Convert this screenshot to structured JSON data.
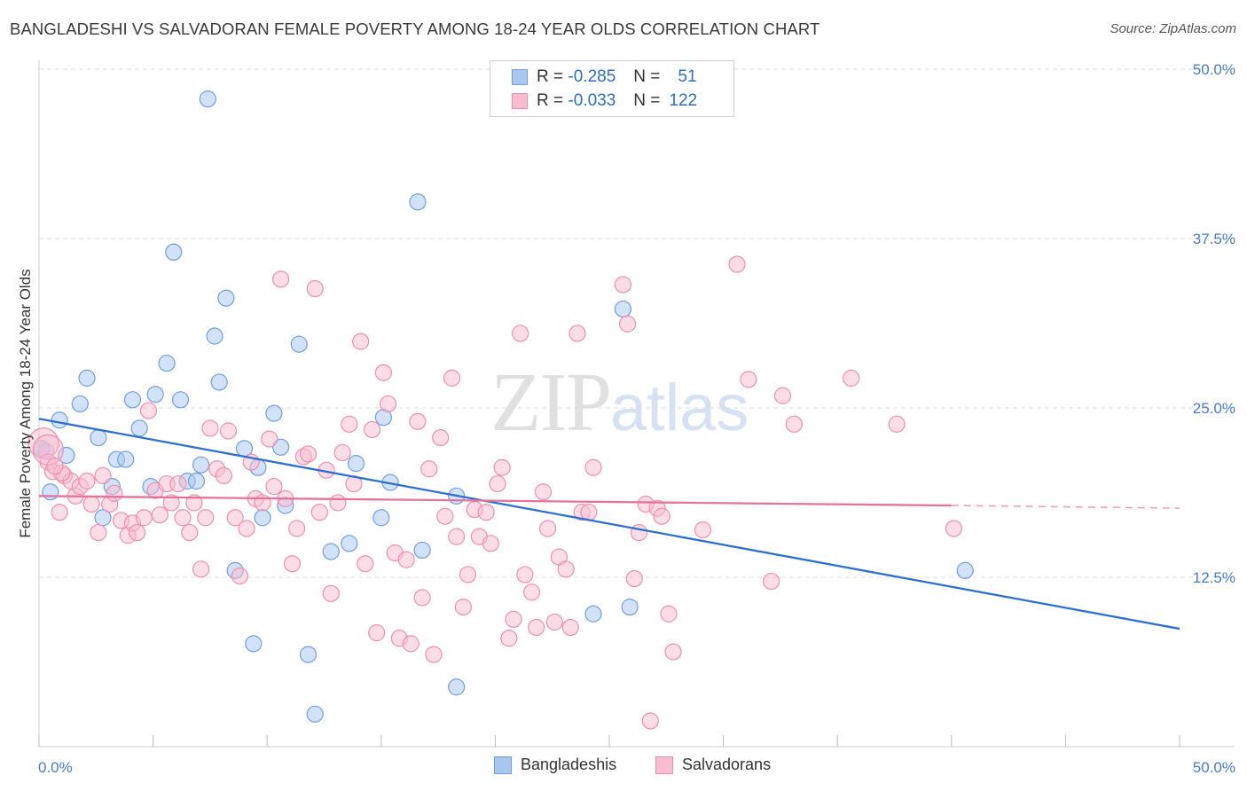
{
  "title": "BANGLADESHI VS SALVADORAN FEMALE POVERTY AMONG 18-24 YEAR OLDS CORRELATION CHART",
  "source": "Source: ZipAtlas.com",
  "watermark": {
    "zip": "ZIP",
    "atlas": "atlas"
  },
  "legend": {
    "rows": [
      {
        "r_label": "R =",
        "r_value": "-0.285",
        "n_label": "N =",
        "n_value": "51",
        "color": "#a9c6ef",
        "stroke": "#6f9fe0"
      },
      {
        "r_label": "R =",
        "r_value": "-0.033",
        "n_label": "N =",
        "n_value": "122",
        "color": "#f7bcd0",
        "stroke": "#ee8fb0"
      }
    ]
  },
  "bottom_legend": [
    {
      "label": "Bangladeshis",
      "color": "#a9c6ef",
      "stroke": "#6f9fe0"
    },
    {
      "label": "Salvadorans",
      "color": "#f7bcd0",
      "stroke": "#ee8fb0"
    }
  ],
  "chart_data": {
    "type": "scatter",
    "title": "BANGLADESHI VS SALVADORAN FEMALE POVERTY AMONG 18-24 YEAR OLDS CORRELATION CHART",
    "xlabel": "",
    "ylabel": "Female Poverty Among 18-24 Year Olds",
    "xlim": [
      0,
      50
    ],
    "ylim": [
      0,
      50
    ],
    "x_tick_labels": [
      "0.0%",
      "50.0%"
    ],
    "y_tick_labels": [
      "12.5%",
      "25.0%",
      "37.5%",
      "50.0%"
    ],
    "y_ticks": [
      12.5,
      25,
      37.5,
      50
    ],
    "grid": true,
    "legend_position": "top-center",
    "series": [
      {
        "name": "Bangladeshis",
        "color": "#6f9fe0",
        "fill": "#a9c6ef",
        "trend": {
          "x0": 0,
          "y0": 24.2,
          "x1": 50,
          "y1": 8.7
        },
        "points": [
          [
            0.3,
            21.8
          ],
          [
            0.5,
            18.8
          ],
          [
            0.9,
            24.1
          ],
          [
            1.2,
            21.5
          ],
          [
            1.8,
            25.3
          ],
          [
            2.1,
            27.2
          ],
          [
            2.6,
            22.8
          ],
          [
            2.8,
            16.9
          ],
          [
            3.2,
            19.2
          ],
          [
            3.4,
            21.2
          ],
          [
            3.8,
            21.2
          ],
          [
            4.1,
            25.6
          ],
          [
            4.4,
            23.5
          ],
          [
            4.9,
            19.2
          ],
          [
            5.1,
            26.0
          ],
          [
            5.6,
            28.3
          ],
          [
            5.9,
            36.5
          ],
          [
            6.2,
            25.6
          ],
          [
            6.5,
            19.6
          ],
          [
            6.9,
            19.6
          ],
          [
            7.1,
            20.8
          ],
          [
            7.4,
            47.8
          ],
          [
            7.7,
            30.3
          ],
          [
            7.9,
            26.9
          ],
          [
            8.2,
            33.1
          ],
          [
            8.6,
            13.0
          ],
          [
            9.0,
            22.0
          ],
          [
            9.4,
            7.6
          ],
          [
            9.6,
            20.6
          ],
          [
            9.8,
            16.9
          ],
          [
            10.3,
            24.6
          ],
          [
            10.6,
            22.1
          ],
          [
            10.8,
            17.8
          ],
          [
            11.4,
            29.7
          ],
          [
            11.8,
            6.8
          ],
          [
            12.1,
            2.4
          ],
          [
            12.8,
            14.4
          ],
          [
            13.6,
            15.0
          ],
          [
            13.9,
            20.9
          ],
          [
            15.1,
            24.3
          ],
          [
            15.0,
            16.9
          ],
          [
            15.4,
            19.5
          ],
          [
            16.6,
            40.2
          ],
          [
            16.8,
            14.5
          ],
          [
            18.3,
            4.4
          ],
          [
            18.3,
            18.5
          ],
          [
            24.3,
            9.8
          ],
          [
            25.6,
            32.3
          ],
          [
            25.9,
            10.3
          ],
          [
            40.6,
            13.0
          ],
          [
            0.1,
            22.0
          ]
        ]
      },
      {
        "name": "Salvadorans",
        "color": "#ee8fb0",
        "fill": "#f7bcd0",
        "trend": {
          "x0": 0,
          "y0": 18.5,
          "x1": 40,
          "y1": 17.8,
          "dash_to_x": 50,
          "dash_to_y": 17.6
        },
        "points": [
          [
            0.2,
            22.4
          ],
          [
            0.4,
            21.0
          ],
          [
            0.6,
            20.3
          ],
          [
            0.9,
            17.3
          ],
          [
            1.1,
            20.0
          ],
          [
            1.4,
            19.6
          ],
          [
            1.6,
            18.5
          ],
          [
            1.8,
            19.2
          ],
          [
            2.1,
            19.6
          ],
          [
            2.3,
            17.9
          ],
          [
            2.6,
            15.8
          ],
          [
            2.8,
            20.0
          ],
          [
            3.1,
            17.9
          ],
          [
            3.3,
            18.7
          ],
          [
            3.6,
            16.7
          ],
          [
            3.9,
            15.6
          ],
          [
            4.1,
            16.5
          ],
          [
            4.3,
            15.8
          ],
          [
            4.6,
            16.9
          ],
          [
            4.8,
            24.8
          ],
          [
            5.1,
            18.9
          ],
          [
            5.3,
            17.1
          ],
          [
            5.6,
            19.4
          ],
          [
            5.8,
            18.0
          ],
          [
            6.1,
            19.4
          ],
          [
            6.3,
            16.9
          ],
          [
            6.6,
            15.8
          ],
          [
            6.8,
            18.0
          ],
          [
            7.1,
            13.1
          ],
          [
            7.3,
            16.9
          ],
          [
            7.5,
            23.5
          ],
          [
            7.8,
            20.5
          ],
          [
            8.1,
            20.0
          ],
          [
            8.3,
            23.3
          ],
          [
            8.6,
            16.9
          ],
          [
            8.8,
            12.6
          ],
          [
            9.1,
            16.1
          ],
          [
            9.3,
            21.0
          ],
          [
            9.5,
            18.3
          ],
          [
            9.8,
            18.0
          ],
          [
            10.1,
            22.7
          ],
          [
            10.3,
            19.2
          ],
          [
            10.6,
            34.5
          ],
          [
            10.8,
            18.3
          ],
          [
            11.1,
            13.5
          ],
          [
            11.3,
            16.1
          ],
          [
            11.6,
            21.4
          ],
          [
            11.8,
            21.6
          ],
          [
            12.1,
            33.8
          ],
          [
            12.3,
            17.3
          ],
          [
            12.6,
            20.4
          ],
          [
            12.8,
            11.3
          ],
          [
            13.1,
            18.0
          ],
          [
            13.3,
            21.7
          ],
          [
            13.6,
            23.8
          ],
          [
            13.8,
            19.4
          ],
          [
            14.1,
            29.9
          ],
          [
            14.3,
            13.5
          ],
          [
            14.6,
            23.4
          ],
          [
            14.8,
            8.4
          ],
          [
            15.1,
            27.6
          ],
          [
            15.3,
            25.3
          ],
          [
            15.6,
            14.3
          ],
          [
            15.8,
            8.0
          ],
          [
            16.1,
            13.8
          ],
          [
            16.3,
            7.6
          ],
          [
            16.6,
            24.0
          ],
          [
            16.8,
            11.0
          ],
          [
            17.1,
            20.5
          ],
          [
            17.3,
            6.8
          ],
          [
            17.6,
            22.8
          ],
          [
            17.8,
            17.0
          ],
          [
            18.1,
            27.2
          ],
          [
            18.3,
            15.5
          ],
          [
            18.6,
            10.3
          ],
          [
            18.8,
            12.7
          ],
          [
            19.1,
            17.5
          ],
          [
            19.3,
            15.5
          ],
          [
            19.6,
            17.3
          ],
          [
            19.8,
            15.0
          ],
          [
            20.1,
            19.4
          ],
          [
            20.3,
            20.6
          ],
          [
            20.6,
            8.0
          ],
          [
            20.8,
            9.4
          ],
          [
            21.1,
            30.5
          ],
          [
            21.3,
            12.7
          ],
          [
            21.6,
            11.4
          ],
          [
            21.8,
            8.8
          ],
          [
            22.1,
            18.8
          ],
          [
            22.3,
            16.1
          ],
          [
            22.6,
            9.2
          ],
          [
            22.8,
            14.0
          ],
          [
            23.1,
            13.1
          ],
          [
            23.3,
            8.8
          ],
          [
            23.6,
            30.5
          ],
          [
            23.8,
            17.3
          ],
          [
            24.1,
            17.3
          ],
          [
            24.3,
            20.6
          ],
          [
            25.6,
            34.1
          ],
          [
            25.8,
            31.2
          ],
          [
            26.1,
            12.4
          ],
          [
            26.3,
            15.8
          ],
          [
            26.6,
            17.9
          ],
          [
            26.8,
            1.9
          ],
          [
            27.1,
            17.6
          ],
          [
            27.3,
            17.0
          ],
          [
            27.6,
            9.8
          ],
          [
            27.8,
            7.0
          ],
          [
            29.1,
            16.0
          ],
          [
            30.6,
            35.6
          ],
          [
            31.1,
            27.1
          ],
          [
            32.1,
            12.2
          ],
          [
            32.6,
            25.9
          ],
          [
            33.1,
            23.8
          ],
          [
            35.6,
            27.2
          ],
          [
            37.6,
            23.8
          ],
          [
            40.1,
            16.1
          ],
          [
            0.4,
            21.9
          ],
          [
            1.0,
            20.2
          ],
          [
            0.7,
            20.7
          ]
        ]
      }
    ]
  }
}
